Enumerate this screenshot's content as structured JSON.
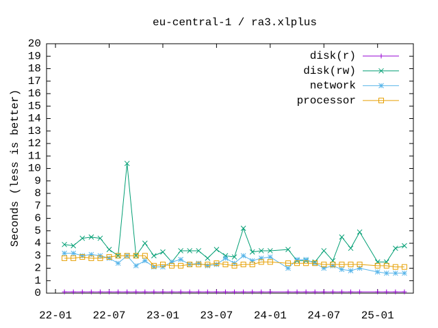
{
  "chart_data": {
    "type": "line",
    "title": "eu-central-1 / ra3.xlplus",
    "ylabel": "Seconds (less is better)",
    "x": [
      "2022-02",
      "2022-03",
      "2022-04",
      "2022-05",
      "2022-06",
      "2022-07",
      "2022-08",
      "2022-09",
      "2022-10",
      "2022-11",
      "2022-12",
      "2023-01",
      "2023-02",
      "2023-03",
      "2023-04",
      "2023-05",
      "2023-06",
      "2023-07",
      "2023-08",
      "2023-09",
      "2023-10",
      "2023-11",
      "2023-12",
      "2024-01",
      "2024-03",
      "2024-04",
      "2024-05",
      "2024-06",
      "2024-07",
      "2024-08",
      "2024-09",
      "2024-10",
      "2024-11",
      "2025-01",
      "2025-02",
      "2025-03",
      "2025-04"
    ],
    "series": [
      {
        "name": "disk(r)",
        "color": "#9400d3",
        "marker": "plus",
        "values": [
          0.1,
          0.1,
          0.1,
          0.1,
          0.1,
          0.1,
          0.1,
          0.1,
          0.1,
          0.1,
          0.1,
          0.1,
          0.1,
          0.1,
          0.1,
          0.1,
          0.1,
          0.1,
          0.1,
          0.1,
          0.1,
          0.1,
          0.1,
          0.1,
          0.1,
          0.1,
          0.1,
          0.1,
          0.1,
          0.1,
          0.1,
          0.1,
          0.1,
          0.1,
          0.1,
          0.1,
          0.1
        ]
      },
      {
        "name": "disk(rw)",
        "color": "#009e73",
        "marker": "cross",
        "values": [
          3.9,
          3.8,
          4.4,
          4.5,
          4.4,
          3.5,
          3.0,
          10.4,
          3.0,
          4.0,
          3.0,
          3.3,
          2.5,
          3.4,
          3.4,
          3.4,
          2.8,
          3.5,
          3.0,
          2.9,
          5.2,
          3.3,
          3.4,
          3.4,
          3.5,
          2.6,
          2.6,
          2.5,
          3.4,
          2.6,
          4.5,
          3.6,
          4.9,
          2.5,
          2.5,
          3.6,
          3.8
        ]
      },
      {
        "name": "network",
        "color": "#56b4e9",
        "marker": "star",
        "values": [
          3.2,
          3.2,
          3.0,
          3.1,
          3.0,
          2.8,
          2.4,
          3.0,
          2.2,
          2.6,
          2.1,
          2.1,
          2.5,
          2.7,
          2.3,
          2.4,
          2.2,
          2.3,
          2.8,
          2.4,
          3.0,
          2.6,
          2.8,
          2.9,
          2.0,
          2.7,
          2.7,
          2.4,
          2.0,
          2.2,
          1.9,
          1.8,
          2.0,
          1.7,
          1.6,
          1.6,
          1.6
        ]
      },
      {
        "name": "processor",
        "color": "#e69f00",
        "marker": "square",
        "values": [
          2.8,
          2.8,
          2.9,
          2.8,
          2.8,
          2.9,
          3.0,
          3.0,
          3.0,
          3.0,
          2.2,
          2.3,
          2.2,
          2.2,
          2.3,
          2.3,
          2.3,
          2.4,
          2.3,
          2.2,
          2.3,
          2.3,
          2.5,
          2.5,
          2.4,
          2.4,
          2.4,
          2.4,
          2.3,
          2.3,
          2.3,
          2.3,
          2.3,
          2.2,
          2.2,
          2.1,
          2.1
        ]
      }
    ],
    "xlim": [
      "2021-12",
      "2025-05"
    ],
    "xticks": [
      {
        "value": "2022-01",
        "label": "22-01"
      },
      {
        "value": "2022-07",
        "label": "22-07"
      },
      {
        "value": "2023-01",
        "label": "23-01"
      },
      {
        "value": "2023-07",
        "label": "23-07"
      },
      {
        "value": "2024-01",
        "label": "24-01"
      },
      {
        "value": "2024-07",
        "label": "24-07"
      },
      {
        "value": "2025-01",
        "label": "25-01"
      }
    ],
    "ylim": [
      0,
      20
    ],
    "yticks": [
      0,
      1,
      2,
      3,
      4,
      5,
      6,
      7,
      8,
      9,
      10,
      11,
      12,
      13,
      14,
      15,
      16,
      17,
      18,
      19,
      20
    ],
    "legend": "top-right"
  }
}
